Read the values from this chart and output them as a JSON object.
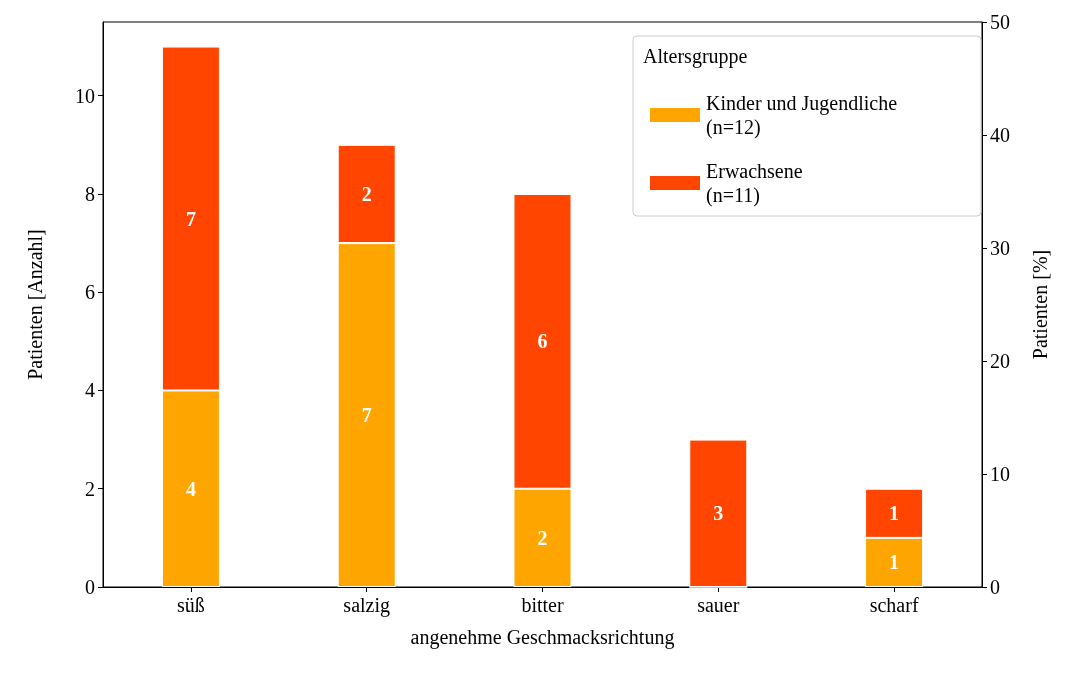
{
  "chart_data": {
    "type": "bar",
    "stacked": true,
    "xlabel": "angenehme Geschmacksrichtung",
    "ylabel": "Patienten [Anzahl]",
    "y2label": "Patienten [%]",
    "legend_title": "Altersgruppe",
    "legend": "top right",
    "grid": false,
    "categories": [
      "süß",
      "salzig",
      "bitter",
      "sauer",
      "scharf"
    ],
    "series": [
      {
        "name": "Kinder und Jugendliche\n(n=12)",
        "color": "#ffa500",
        "values": [
          4,
          7,
          2,
          0,
          1
        ],
        "value_labels": [
          "4",
          "7",
          "2",
          null,
          "1"
        ]
      },
      {
        "name": "Erwachsene\n(n=11)",
        "color": "#ff4500",
        "values": [
          7,
          2,
          6,
          3,
          1
        ],
        "value_labels": [
          "7",
          "2",
          "6",
          "3",
          "1"
        ]
      }
    ],
    "ylim": [
      0,
      11.5
    ],
    "yticks": [
      0,
      2,
      4,
      6,
      8,
      10
    ],
    "y2lim": [
      0,
      50
    ],
    "y2ticks": [
      0,
      10,
      20,
      30,
      40,
      50
    ]
  }
}
